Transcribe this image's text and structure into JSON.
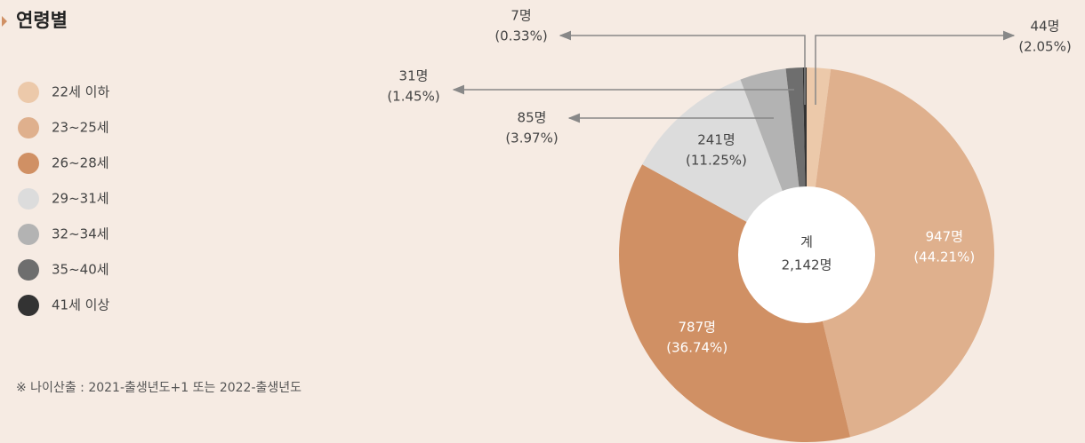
{
  "chart_data": {
    "type": "pie",
    "title": "연령별",
    "categories": [
      "22세 이하",
      "23~25세",
      "26~28세",
      "29~31세",
      "32~34세",
      "35~40세",
      "41세 이상"
    ],
    "values": [
      44,
      947,
      787,
      241,
      85,
      31,
      7
    ],
    "value_labels": [
      "44명",
      "947명",
      "787명",
      "241명",
      "85명",
      "31명",
      "7명"
    ],
    "percentage_labels": [
      "(2.05%)",
      "(44.21%)",
      "(36.74%)",
      "(11.25%)",
      "(3.97%)",
      "(1.45%)",
      "(0.33%)"
    ],
    "colors": [
      "#ecc9aa",
      "#dfb08d",
      "#d09064",
      "#dcdcdc",
      "#b3b3b3",
      "#6e6e6e",
      "#333333"
    ],
    "center_title": "계",
    "center_value": "2,142명",
    "note": "※ 나이산출 : 2021-출생년도+1 또는 2022-출생년도"
  }
}
